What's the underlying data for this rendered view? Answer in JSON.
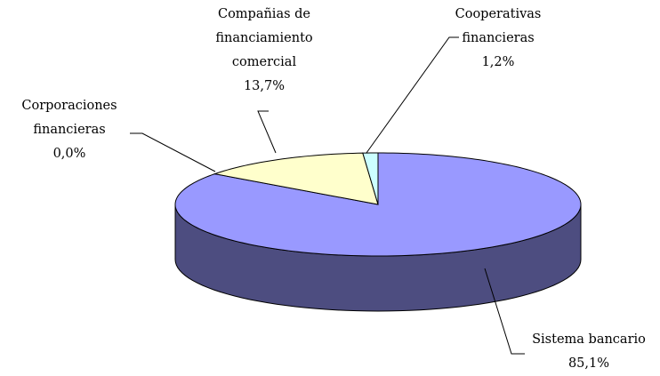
{
  "chart_data": {
    "type": "pie",
    "categories": [
      "Sistema bancario",
      "Corporaciones financieras",
      "Compañias de financiamiento comercial",
      "Cooperativas financieras"
    ],
    "values": [
      85.1,
      0.0,
      13.7,
      1.2
    ],
    "value_labels": [
      "85,1%",
      "0,0%",
      "13,7%",
      "1,2%"
    ],
    "colors": [
      "#9999ff",
      "#993366",
      "#ffffcc",
      "#ccffff"
    ]
  }
}
